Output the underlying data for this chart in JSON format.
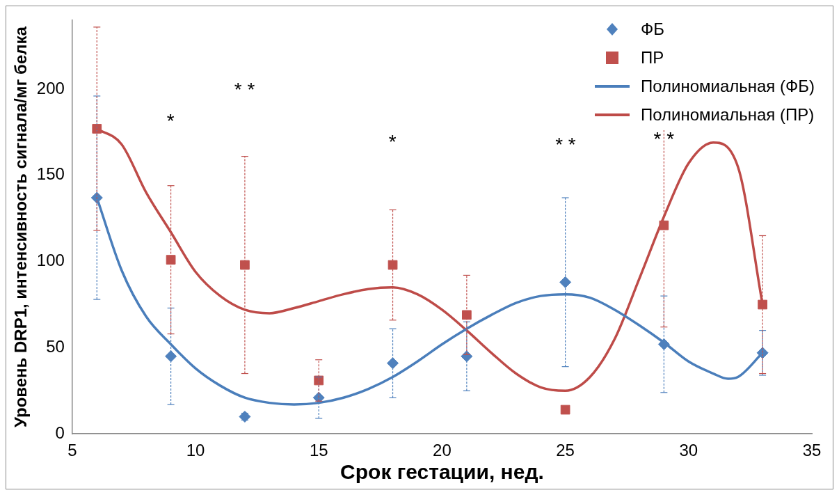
{
  "chart_data": {
    "type": "scatter",
    "xlabel": "Срок гестации, нед.",
    "ylabel": "Уровень DRP1, интенсивность сигнала/мг белка",
    "xlim": [
      5,
      35
    ],
    "xticks": [
      5,
      10,
      15,
      20,
      25,
      30,
      35
    ],
    "ylim": [
      0,
      240
    ],
    "yticks": [
      0,
      50,
      100,
      150,
      200
    ],
    "grid": false,
    "legend": "top right",
    "series": [
      {
        "name": "ФБ",
        "marker": "diamond",
        "color": "#4f81bd",
        "x": [
          6,
          9,
          12,
          15,
          18,
          21,
          25,
          29,
          33
        ],
        "values": [
          137,
          45,
          10,
          21,
          41,
          45,
          88,
          52,
          47
        ],
        "errors": [
          [
            78,
            196
          ],
          [
            17,
            73
          ],
          [
            8,
            12
          ],
          [
            9,
            33
          ],
          [
            21,
            61
          ],
          [
            25,
            65
          ],
          [
            39,
            137
          ],
          [
            24,
            80
          ],
          [
            34,
            60
          ]
        ]
      },
      {
        "name": "ПР",
        "marker": "square",
        "color": "#c0504d",
        "x": [
          6,
          9,
          12,
          15,
          18,
          21,
          25,
          29,
          33
        ],
        "values": [
          177,
          101,
          98,
          31,
          98,
          69,
          14,
          121,
          75
        ],
        "errors": [
          [
            118,
            236
          ],
          [
            58,
            144
          ],
          [
            35,
            161
          ],
          [
            19,
            43
          ],
          [
            66,
            130
          ],
          [
            46,
            92
          ],
          null,
          59,
          [
            35,
            115
          ]
        ]
      },
      {
        "name": "Полиномиальная (ФБ)",
        "type": "line",
        "marker": "none",
        "color": "#4a7ebb",
        "x": [
          6,
          7,
          8,
          9,
          10,
          11,
          12,
          13,
          14,
          15,
          16,
          17,
          18,
          19,
          20,
          21,
          22,
          23,
          24,
          25,
          26,
          27,
          28,
          29,
          30,
          31,
          31.6,
          32,
          33
        ],
        "values": [
          137,
          95,
          68,
          52,
          38,
          28,
          21,
          18,
          17,
          18,
          21,
          26,
          33,
          42,
          52,
          61,
          69,
          76,
          80,
          81,
          79,
          72,
          63,
          53,
          42,
          35,
          32,
          33,
          47
        ]
      },
      {
        "name": "Полиномиальная (ПР)",
        "type": "line",
        "marker": "none",
        "color": "#be4b48",
        "x": [
          6,
          7,
          8,
          9,
          10,
          11,
          12,
          13,
          14,
          15,
          16,
          17,
          18,
          19,
          20,
          21,
          22,
          23,
          24,
          25,
          26,
          27,
          28,
          29,
          30,
          31,
          32,
          33
        ],
        "values": [
          177,
          168,
          140,
          117,
          94,
          80,
          72,
          70,
          73,
          77,
          81,
          84,
          85,
          81,
          72,
          60,
          47,
          35,
          27,
          25,
          33,
          55,
          90,
          126,
          157,
          169,
          155,
          75
        ]
      }
    ],
    "annotations": [
      "*",
      "* *",
      "*",
      "* *",
      "* *"
    ]
  }
}
